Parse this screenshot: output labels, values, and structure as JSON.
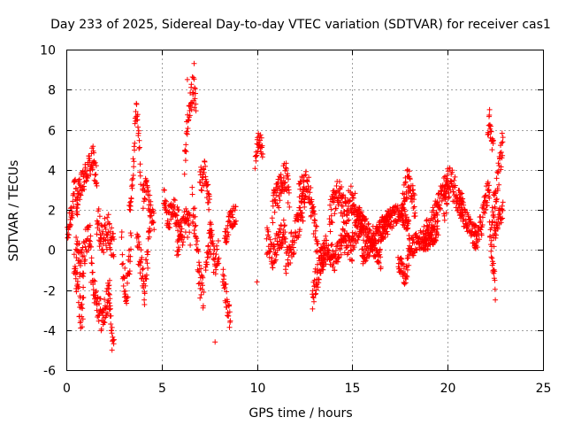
{
  "chart_data": {
    "type": "scatter",
    "title": "Day 233 of 2025, Sidereal Day-to-day VTEC variation (SDTVAR) for receiver cas1",
    "xlabel": "GPS time / hours",
    "ylabel": "SDTVAR / TECUs",
    "xlim": [
      0,
      25
    ],
    "ylim": [
      -6,
      10
    ],
    "xticks": [
      "0",
      "5",
      "10",
      "15",
      "20",
      "25"
    ],
    "yticks": [
      "-6",
      "-4",
      "-2",
      "0",
      "2",
      "4",
      "6",
      "8",
      "10"
    ],
    "grid": true,
    "marker": "plus",
    "color": "#ff0000",
    "series": [
      {
        "name": "SDTVAR",
        "segments": [
          {
            "x0": 0.05,
            "x1": 0.6,
            "pts": [
              [
                0.05,
                0.5
              ],
              [
                0.2,
                1.5
              ],
              [
                0.35,
                2.5
              ],
              [
                0.45,
                3.0
              ],
              [
                0.6,
                2.0
              ]
            ],
            "noise": 0.7
          },
          {
            "x0": 0.4,
            "x1": 0.9,
            "pts": [
              [
                0.4,
                -0.5
              ],
              [
                0.6,
                -2.0
              ],
              [
                0.8,
                -3.5
              ],
              [
                0.9,
                -2.5
              ]
            ],
            "noise": 0.8
          },
          {
            "x0": 0.55,
            "x1": 1.6,
            "pts": [
              [
                0.55,
                2.5
              ],
              [
                0.8,
                3.2
              ],
              [
                1.1,
                4.0
              ],
              [
                1.4,
                4.5
              ],
              [
                1.6,
                3.5
              ]
            ],
            "noise": 0.7
          },
          {
            "x0": 0.5,
            "x1": 1.3,
            "pts": [
              [
                0.5,
                0.0
              ],
              [
                0.8,
                -0.8
              ],
              [
                1.1,
                0.5
              ],
              [
                1.3,
                1.0
              ]
            ],
            "noise": 0.9
          },
          {
            "x0": 1.3,
            "x1": 2.3,
            "pts": [
              [
                1.3,
                -1.0
              ],
              [
                1.6,
                -2.5
              ],
              [
                1.9,
                -3.5
              ],
              [
                2.3,
                -2.0
              ]
            ],
            "noise": 0.8
          },
          {
            "x0": 1.6,
            "x1": 2.5,
            "pts": [
              [
                1.6,
                1.5
              ],
              [
                1.9,
                0.5
              ],
              [
                2.2,
                1.0
              ],
              [
                2.5,
                0.0
              ]
            ],
            "noise": 0.9
          },
          {
            "x0": 2.2,
            "x1": 2.5,
            "pts": [
              [
                2.2,
                -2.0
              ],
              [
                2.35,
                -3.5
              ],
              [
                2.5,
                -4.8
              ]
            ],
            "noise": 0.5
          },
          {
            "x0": 2.9,
            "x1": 3.4,
            "pts": [
              [
                2.9,
                0.5
              ],
              [
                3.0,
                -1.5
              ],
              [
                3.2,
                -2.0
              ],
              [
                3.4,
                0.5
              ]
            ],
            "noise": 0.8
          },
          {
            "x0": 3.3,
            "x1": 3.9,
            "pts": [
              [
                3.3,
                2.0
              ],
              [
                3.5,
                4.0
              ],
              [
                3.65,
                7.0
              ],
              [
                3.8,
                6.0
              ],
              [
                3.9,
                3.0
              ]
            ],
            "noise": 0.6
          },
          {
            "x0": 3.7,
            "x1": 4.4,
            "pts": [
              [
                3.7,
                0.5
              ],
              [
                3.9,
                -0.5
              ],
              [
                4.1,
                -2.0
              ],
              [
                4.3,
                0.0
              ],
              [
                4.4,
                1.5
              ]
            ],
            "noise": 0.8
          },
          {
            "x0": 4.0,
            "x1": 4.6,
            "pts": [
              [
                4.0,
                2.5
              ],
              [
                4.2,
                3.3
              ],
              [
                4.4,
                2.0
              ],
              [
                4.6,
                1.5
              ]
            ],
            "noise": 0.6
          },
          {
            "x0": 5.1,
            "x1": 6.0,
            "pts": [
              [
                5.1,
                2.5
              ],
              [
                5.4,
                1.5
              ],
              [
                5.7,
                2.0
              ],
              [
                6.0,
                1.0
              ]
            ],
            "noise": 0.7
          },
          {
            "x0": 5.8,
            "x1": 6.5,
            "pts": [
              [
                5.8,
                -0.5
              ],
              [
                6.0,
                0.5
              ],
              [
                6.3,
                1.5
              ],
              [
                6.5,
                1.0
              ]
            ],
            "noise": 0.8
          },
          {
            "x0": 6.2,
            "x1": 6.8,
            "pts": [
              [
                6.2,
                4.5
              ],
              [
                6.4,
                6.5
              ],
              [
                6.6,
                8.0
              ],
              [
                6.8,
                7.5
              ]
            ],
            "noise": 0.8
          },
          {
            "x0": 6.6,
            "x1": 7.2,
            "pts": [
              [
                6.6,
                2.5
              ],
              [
                6.8,
                0.5
              ],
              [
                7.0,
                -1.5
              ],
              [
                7.2,
                -2.5
              ]
            ],
            "noise": 0.9
          },
          {
            "x0": 7.0,
            "x1": 7.6,
            "pts": [
              [
                7.0,
                3.5
              ],
              [
                7.2,
                4.0
              ],
              [
                7.4,
                3.0
              ],
              [
                7.6,
                1.0
              ]
            ],
            "noise": 0.8
          },
          {
            "x0": 7.3,
            "x1": 8.0,
            "pts": [
              [
                7.3,
                -0.5
              ],
              [
                7.6,
                0.5
              ],
              [
                7.8,
                -1.0
              ],
              [
                8.0,
                0.0
              ]
            ],
            "noise": 0.8
          },
          {
            "x0": 8.2,
            "x1": 8.6,
            "pts": [
              [
                8.2,
                -1.0
              ],
              [
                8.4,
                -2.5
              ],
              [
                8.6,
                -3.5
              ]
            ],
            "noise": 0.6
          },
          {
            "x0": 8.3,
            "x1": 8.9,
            "pts": [
              [
                8.3,
                0.5
              ],
              [
                8.6,
                1.5
              ],
              [
                8.9,
                1.8
              ]
            ],
            "noise": 0.5
          },
          {
            "x0": 9.9,
            "x1": 10.3,
            "pts": [
              [
                9.9,
                4.5
              ],
              [
                10.1,
                5.5
              ],
              [
                10.3,
                5.0
              ]
            ],
            "noise": 0.5
          },
          {
            "x0": 10.5,
            "x1": 11.5,
            "pts": [
              [
                10.5,
                0.5
              ],
              [
                10.8,
                -0.3
              ],
              [
                11.1,
                0.5
              ],
              [
                11.5,
                1.0
              ]
            ],
            "noise": 0.7
          },
          {
            "x0": 10.8,
            "x1": 11.7,
            "pts": [
              [
                10.8,
                2.0
              ],
              [
                11.2,
                3.0
              ],
              [
                11.5,
                3.8
              ],
              [
                11.7,
                2.5
              ]
            ],
            "noise": 0.8
          },
          {
            "x0": 11.5,
            "x1": 12.5,
            "pts": [
              [
                11.5,
                -0.5
              ],
              [
                11.9,
                0.5
              ],
              [
                12.2,
                1.5
              ],
              [
                12.5,
                2.5
              ]
            ],
            "noise": 0.8
          },
          {
            "x0": 12.2,
            "x1": 13.2,
            "pts": [
              [
                12.2,
                2.5
              ],
              [
                12.6,
                3.5
              ],
              [
                12.9,
                2.0
              ],
              [
                13.2,
                0.0
              ]
            ],
            "noise": 0.8
          },
          {
            "x0": 12.9,
            "x1": 13.6,
            "pts": [
              [
                12.9,
                -2.5
              ],
              [
                13.1,
                -1.5
              ],
              [
                13.4,
                -0.5
              ],
              [
                13.6,
                0.0
              ]
            ],
            "noise": 0.7
          },
          {
            "x0": 13.3,
            "x1": 15.0,
            "pts": [
              [
                13.3,
                -0.5
              ],
              [
                13.7,
                0.0
              ],
              [
                14.1,
                -0.5
              ],
              [
                14.5,
                0.5
              ],
              [
                15.0,
                0.0
              ]
            ],
            "noise": 0.6
          },
          {
            "x0": 13.8,
            "x1": 15.6,
            "pts": [
              [
                13.8,
                1.5
              ],
              [
                14.2,
                3.0
              ],
              [
                14.6,
                2.0
              ],
              [
                15.0,
                2.5
              ],
              [
                15.3,
                1.5
              ],
              [
                15.6,
                1.0
              ]
            ],
            "noise": 0.8
          },
          {
            "x0": 15.0,
            "x1": 17.0,
            "pts": [
              [
                15.0,
                0.5
              ],
              [
                15.5,
                1.5
              ],
              [
                16.0,
                0.5
              ],
              [
                16.5,
                1.0
              ],
              [
                17.0,
                1.5
              ]
            ],
            "noise": 0.6
          },
          {
            "x0": 15.5,
            "x1": 16.5,
            "pts": [
              [
                15.5,
                -0.3
              ],
              [
                16.0,
                0.3
              ],
              [
                16.5,
                -0.5
              ]
            ],
            "noise": 0.5
          },
          {
            "x0": 16.5,
            "x1": 18.0,
            "pts": [
              [
                16.5,
                1.0
              ],
              [
                17.0,
                1.5
              ],
              [
                17.5,
                2.0
              ],
              [
                18.0,
                1.0
              ]
            ],
            "noise": 0.5
          },
          {
            "x0": 17.4,
            "x1": 18.0,
            "pts": [
              [
                17.4,
                -0.5
              ],
              [
                17.6,
                -1.0
              ],
              [
                17.8,
                -1.5
              ],
              [
                18.0,
                0.0
              ]
            ],
            "noise": 0.5
          },
          {
            "x0": 17.6,
            "x1": 18.3,
            "pts": [
              [
                17.6,
                2.0
              ],
              [
                17.9,
                3.5
              ],
              [
                18.1,
                3.0
              ],
              [
                18.3,
                2.0
              ]
            ],
            "noise": 0.7
          },
          {
            "x0": 18.0,
            "x1": 19.5,
            "pts": [
              [
                18.0,
                0.0
              ],
              [
                18.5,
                0.5
              ],
              [
                19.0,
                0.5
              ],
              [
                19.5,
                1.0
              ]
            ],
            "noise": 0.5
          },
          {
            "x0": 18.7,
            "x1": 20.0,
            "pts": [
              [
                18.7,
                0.5
              ],
              [
                19.2,
                1.5
              ],
              [
                19.6,
                2.5
              ],
              [
                20.0,
                3.5
              ]
            ],
            "noise": 0.6
          },
          {
            "x0": 19.8,
            "x1": 20.8,
            "pts": [
              [
                19.8,
                2.0
              ],
              [
                20.1,
                3.5
              ],
              [
                20.4,
                3.0
              ],
              [
                20.8,
                2.0
              ]
            ],
            "noise": 0.8
          },
          {
            "x0": 20.6,
            "x1": 21.5,
            "pts": [
              [
                20.6,
                2.5
              ],
              [
                20.9,
                1.5
              ],
              [
                21.2,
                1.0
              ],
              [
                21.5,
                0.5
              ]
            ],
            "noise": 0.6
          },
          {
            "x0": 21.4,
            "x1": 22.2,
            "pts": [
              [
                21.4,
                0.5
              ],
              [
                21.7,
                1.0
              ],
              [
                22.0,
                2.5
              ],
              [
                22.2,
                3.0
              ]
            ],
            "noise": 0.7
          },
          {
            "x0": 22.1,
            "x1": 22.4,
            "pts": [
              [
                22.1,
                5.5
              ],
              [
                22.2,
                6.5
              ],
              [
                22.35,
                5.0
              ]
            ],
            "noise": 0.5
          },
          {
            "x0": 22.2,
            "x1": 22.5,
            "pts": [
              [
                22.2,
                1.0
              ],
              [
                22.35,
                -0.5
              ],
              [
                22.5,
                -2.0
              ]
            ],
            "noise": 0.6
          },
          {
            "x0": 22.3,
            "x1": 22.9,
            "pts": [
              [
                22.3,
                1.5
              ],
              [
                22.5,
                2.5
              ],
              [
                22.7,
                4.0
              ],
              [
                22.9,
                5.5
              ]
            ],
            "noise": 0.7
          },
          {
            "x0": 22.4,
            "x1": 22.9,
            "pts": [
              [
                22.4,
                0.5
              ],
              [
                22.6,
                1.5
              ],
              [
                22.9,
                2.0
              ]
            ],
            "noise": 0.5
          }
        ],
        "singles": [
          [
            6.35,
            8.5
          ],
          [
            6.7,
            9.3
          ],
          [
            7.8,
            -4.6
          ],
          [
            10.0,
            -1.6
          ],
          [
            22.2,
            7.0
          ],
          [
            2.4,
            -5.0
          ],
          [
            0.75,
            -3.9
          ],
          [
            4.1,
            -2.1
          ]
        ]
      }
    ]
  }
}
